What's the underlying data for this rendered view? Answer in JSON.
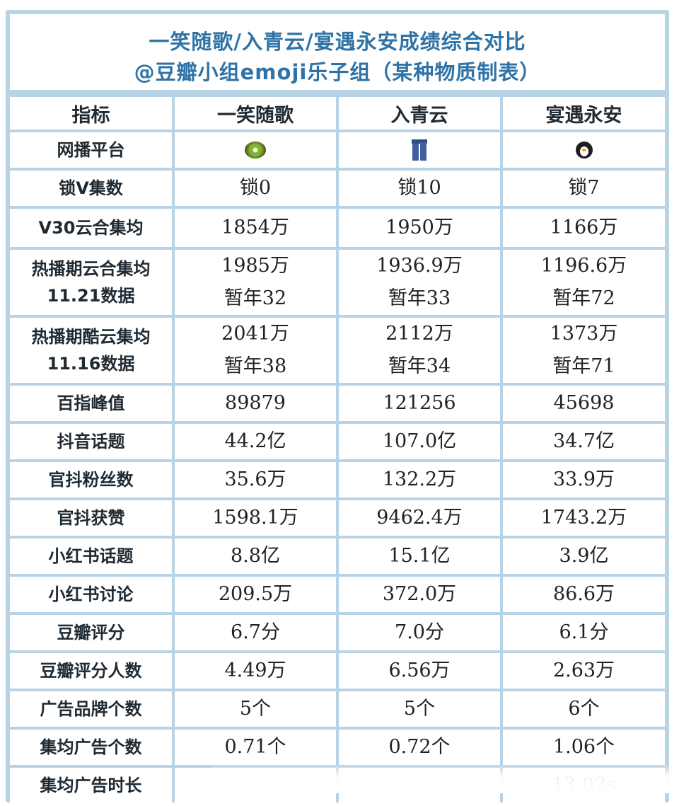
{
  "title": {
    "line1": "一笑随歌/入青云/宴遇永安成绩综合对比",
    "line2": "@豆瓣小组emoji乐子组（某种物质制表）"
  },
  "header": [
    "指标",
    "一笑随歌",
    "入青云",
    "宴遇永安"
  ],
  "platform_row": {
    "label": "网播平台",
    "icons": [
      "kiwi-icon",
      "jeans-icon",
      "penguin-icon"
    ]
  },
  "colors": {
    "frame": "#b9d3e6",
    "header_bg": "#dcebf6",
    "gray": "#d6d6d6",
    "yellow": "#fbfb29",
    "title": "#2f73a6"
  },
  "rows": [
    {
      "label": [
        "锁V集数"
      ],
      "cells": [
        {
          "lines": [
            "锁0"
          ],
          "bg": "gray"
        },
        {
          "lines": [
            "锁10"
          ],
          "bg": "yellow"
        },
        {
          "lines": [
            "锁7"
          ],
          "bg": "white"
        }
      ]
    },
    {
      "label": [
        "V30云合集均"
      ],
      "cells": [
        {
          "lines": [
            "1854万"
          ],
          "bg": "white"
        },
        {
          "lines": [
            "1950万"
          ],
          "bg": "yellow"
        },
        {
          "lines": [
            "1166万"
          ],
          "bg": "gray"
        }
      ]
    },
    {
      "label": [
        "热播期云合集均",
        "11.21数据"
      ],
      "cells": [
        {
          "lines": [
            "1985万",
            "暂年32"
          ],
          "bg": "yellow"
        },
        {
          "lines": [
            "1936.9万",
            "暂年33"
          ],
          "bg": "white"
        },
        {
          "lines": [
            "1196.6万",
            "暂年72"
          ],
          "bg": "gray"
        }
      ]
    },
    {
      "label": [
        "热播期酷云集均",
        "11.16数据"
      ],
      "cells": [
        {
          "lines": [
            "2041万",
            "暂年38"
          ],
          "bg": "white"
        },
        {
          "lines": [
            "2112万",
            "暂年34"
          ],
          "bg": "yellow"
        },
        {
          "lines": [
            "1373万",
            "暂年71"
          ],
          "bg": "gray"
        }
      ]
    },
    {
      "label": [
        "百指峰值"
      ],
      "cells": [
        {
          "lines": [
            "89879"
          ],
          "bg": "white"
        },
        {
          "lines": [
            "121256"
          ],
          "bg": "yellow"
        },
        {
          "lines": [
            "45698"
          ],
          "bg": "gray"
        }
      ]
    },
    {
      "label": [
        "抖音话题"
      ],
      "cells": [
        {
          "lines": [
            "44.2亿"
          ],
          "bg": "white"
        },
        {
          "lines": [
            "107.0亿"
          ],
          "bg": "yellow"
        },
        {
          "lines": [
            "34.7亿"
          ],
          "bg": "gray"
        }
      ]
    },
    {
      "label": [
        "官抖粉丝数"
      ],
      "cells": [
        {
          "lines": [
            "35.6万"
          ],
          "bg": "white"
        },
        {
          "lines": [
            "132.2万"
          ],
          "bg": "yellow"
        },
        {
          "lines": [
            "33.9万"
          ],
          "bg": "gray"
        }
      ]
    },
    {
      "label": [
        "官抖获赞"
      ],
      "cells": [
        {
          "lines": [
            "1598.1万"
          ],
          "bg": "gray"
        },
        {
          "lines": [
            "9462.4万"
          ],
          "bg": "yellow"
        },
        {
          "lines": [
            "1743.2万"
          ],
          "bg": "white"
        }
      ]
    },
    {
      "label": [
        "小红书话题"
      ],
      "cells": [
        {
          "lines": [
            "8.8亿"
          ],
          "bg": "white"
        },
        {
          "lines": [
            "15.1亿"
          ],
          "bg": "yellow"
        },
        {
          "lines": [
            "3.9亿"
          ],
          "bg": "gray"
        }
      ]
    },
    {
      "label": [
        "小红书讨论"
      ],
      "cells": [
        {
          "lines": [
            "209.5万"
          ],
          "bg": "white"
        },
        {
          "lines": [
            "372.0万"
          ],
          "bg": "yellow"
        },
        {
          "lines": [
            "86.6万"
          ],
          "bg": "gray"
        }
      ]
    },
    {
      "label": [
        "豆瓣评分"
      ],
      "cells": [
        {
          "lines": [
            "6.7分"
          ],
          "bg": "white"
        },
        {
          "lines": [
            "7.0分"
          ],
          "bg": "yellow"
        },
        {
          "lines": [
            "6.1分"
          ],
          "bg": "gray"
        }
      ]
    },
    {
      "label": [
        "豆瓣评分人数"
      ],
      "cells": [
        {
          "lines": [
            "4.49万"
          ],
          "bg": "white"
        },
        {
          "lines": [
            "6.56万"
          ],
          "bg": "yellow"
        },
        {
          "lines": [
            "2.63万"
          ],
          "bg": "gray"
        }
      ]
    },
    {
      "label": [
        "广告品牌个数"
      ],
      "cells": [
        {
          "lines": [
            "5个"
          ],
          "bg": "gray"
        },
        {
          "lines": [
            "5个"
          ],
          "bg": "white"
        },
        {
          "lines": [
            "6个"
          ],
          "bg": "yellow"
        }
      ]
    },
    {
      "label": [
        "集均广告个数"
      ],
      "cells": [
        {
          "lines": [
            "0.71个"
          ],
          "bg": "gray"
        },
        {
          "lines": [
            "0.72个"
          ],
          "bg": "white"
        },
        {
          "lines": [
            "1.06个"
          ],
          "bg": "yellow"
        }
      ]
    },
    {
      "label": [
        "集均广告时长"
      ],
      "cells": [
        {
          "lines": [
            ""
          ],
          "bg": "white"
        },
        {
          "lines": [
            ""
          ],
          "bg": "white"
        },
        {
          "lines": [
            "13.02s"
          ],
          "bg": "yellow"
        }
      ]
    }
  ]
}
